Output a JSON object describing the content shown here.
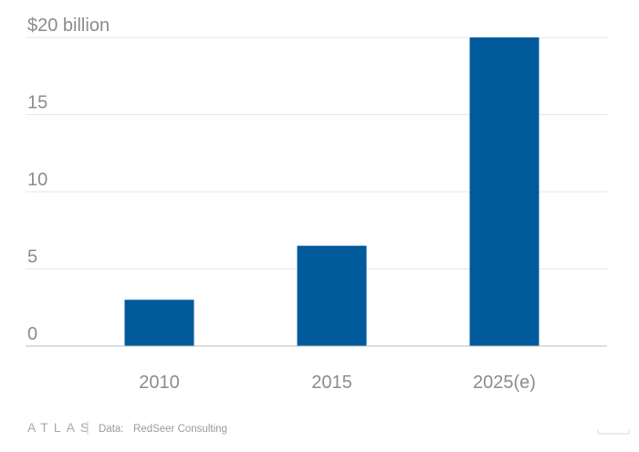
{
  "chart_data": {
    "type": "bar",
    "categories": [
      "2010",
      "2015",
      "2025(e)"
    ],
    "values": [
      3,
      6.5,
      20
    ],
    "ylim": [
      0,
      20
    ],
    "yticks": [
      0,
      5,
      10,
      15,
      20
    ],
    "ytick_labels": [
      "0",
      "5",
      "10",
      "15",
      "$20 billion"
    ],
    "grid": true,
    "bar_color": "#005a9c",
    "gridline_color": "#e6e6e6",
    "axis_color": "#bdbdbd"
  },
  "footer": {
    "logo": "ATLAS",
    "source_label": "Data:",
    "source": "RedSeer Consulting"
  }
}
